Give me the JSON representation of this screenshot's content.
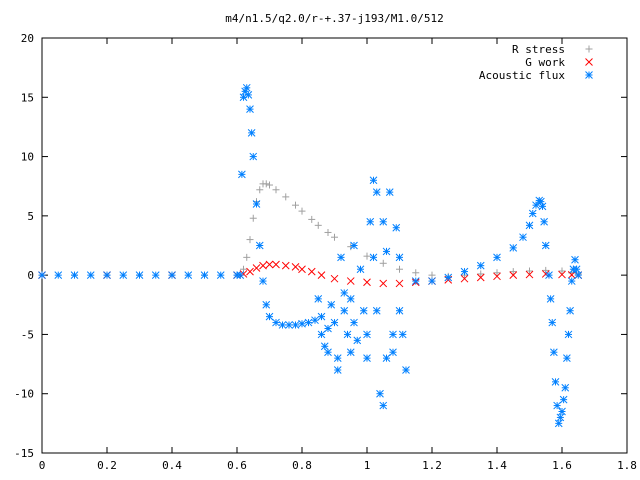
{
  "chart_data": {
    "type": "scatter",
    "title": "m4/n1.5/q2.0/r-+.37-j193/M1.0/512",
    "xlabel": "",
    "ylabel": "",
    "xlim": [
      0,
      1.8
    ],
    "ylim": [
      -15,
      20
    ],
    "xticks": [
      "0",
      "0.2",
      "0.4",
      "0.6",
      "0.8",
      "1",
      "1.2",
      "1.4",
      "1.6",
      "1.8"
    ],
    "yticks": [
      "-15",
      "-10",
      "-5",
      "0",
      "5",
      "10",
      "15",
      "20"
    ],
    "grid": false,
    "legend_position": "top-right",
    "series": [
      {
        "name": "R stress",
        "color": "#a0a0a0",
        "marker": "plus",
        "x": [
          0.0,
          0.1,
          0.2,
          0.3,
          0.4,
          0.5,
          0.6,
          0.62,
          0.63,
          0.64,
          0.65,
          0.66,
          0.67,
          0.68,
          0.69,
          0.7,
          0.72,
          0.75,
          0.78,
          0.8,
          0.83,
          0.85,
          0.88,
          0.9,
          0.95,
          1.0,
          1.05,
          1.1,
          1.15,
          1.2,
          1.25,
          1.3,
          1.35,
          1.4,
          1.45,
          1.5,
          1.55,
          1.6,
          1.63,
          1.65
        ],
        "y": [
          0,
          0,
          0,
          0,
          0,
          0,
          0,
          0.5,
          1.5,
          3.0,
          4.8,
          6.2,
          7.2,
          7.7,
          7.7,
          7.6,
          7.2,
          6.6,
          5.9,
          5.4,
          4.7,
          4.2,
          3.6,
          3.2,
          2.4,
          1.6,
          1.0,
          0.5,
          0.2,
          0.0,
          -0.1,
          0.0,
          0.1,
          0.2,
          0.3,
          0.35,
          0.4,
          0.35,
          0.2,
          0.1
        ]
      },
      {
        "name": "G work",
        "color": "#ff0000",
        "marker": "cross",
        "x": [
          0.0,
          0.2,
          0.4,
          0.6,
          0.62,
          0.64,
          0.66,
          0.68,
          0.7,
          0.72,
          0.75,
          0.78,
          0.8,
          0.83,
          0.86,
          0.9,
          0.95,
          1.0,
          1.05,
          1.1,
          1.15,
          1.2,
          1.25,
          1.3,
          1.35,
          1.4,
          1.45,
          1.5,
          1.55,
          1.6,
          1.63,
          1.65
        ],
        "y": [
          0,
          0,
          0,
          0,
          0.1,
          0.3,
          0.6,
          0.8,
          0.9,
          0.9,
          0.8,
          0.7,
          0.5,
          0.3,
          0.0,
          -0.3,
          -0.5,
          -0.6,
          -0.7,
          -0.7,
          -0.6,
          -0.5,
          -0.4,
          -0.3,
          -0.2,
          -0.1,
          0.0,
          0.05,
          0.1,
          0.05,
          0.02,
          0.0
        ]
      },
      {
        "name": "Acoustic flux",
        "color": "#0080ff",
        "marker": "star",
        "x": [
          0.0,
          0.05,
          0.1,
          0.15,
          0.2,
          0.25,
          0.3,
          0.35,
          0.4,
          0.45,
          0.5,
          0.55,
          0.6,
          0.61,
          0.615,
          0.62,
          0.625,
          0.63,
          0.635,
          0.64,
          0.645,
          0.65,
          0.66,
          0.67,
          0.68,
          0.69,
          0.7,
          0.72,
          0.74,
          0.76,
          0.78,
          0.8,
          0.82,
          0.84,
          0.85,
          0.86,
          0.86,
          0.87,
          0.88,
          0.88,
          0.89,
          0.9,
          0.91,
          0.91,
          0.92,
          0.93,
          0.93,
          0.94,
          0.95,
          0.95,
          0.96,
          0.96,
          0.97,
          0.98,
          0.99,
          1.0,
          1.0,
          1.01,
          1.02,
          1.02,
          1.03,
          1.03,
          1.04,
          1.05,
          1.05,
          1.06,
          1.06,
          1.07,
          1.08,
          1.08,
          1.09,
          1.1,
          1.1,
          1.11,
          1.12,
          1.15,
          1.2,
          1.25,
          1.3,
          1.35,
          1.4,
          1.45,
          1.48,
          1.5,
          1.51,
          1.52,
          1.53,
          1.535,
          1.54,
          1.545,
          1.55,
          1.56,
          1.565,
          1.57,
          1.575,
          1.58,
          1.585,
          1.59,
          1.595,
          1.6,
          1.605,
          1.61,
          1.615,
          1.62,
          1.625,
          1.63,
          1.635,
          1.64,
          1.645,
          1.65
        ],
        "y": [
          0,
          0,
          0,
          0,
          0,
          0,
          0,
          0,
          0,
          0,
          0,
          0,
          0,
          0,
          8.5,
          15.0,
          15.5,
          15.8,
          15.2,
          14.0,
          12.0,
          10.0,
          6.0,
          2.5,
          -0.5,
          -2.5,
          -3.5,
          -4.0,
          -4.2,
          -4.2,
          -4.2,
          -4.1,
          -4.0,
          -3.8,
          -2.0,
          -3.5,
          -5.0,
          -6.0,
          -4.5,
          -6.5,
          -2.5,
          -4.0,
          -7.0,
          -8.0,
          1.5,
          -1.5,
          -3.0,
          -5.0,
          -6.5,
          -2.0,
          2.5,
          -4.0,
          -5.5,
          0.5,
          -3.0,
          -5.0,
          -7.0,
          4.5,
          8.0,
          1.5,
          7.0,
          -3.0,
          -10.0,
          -11.0,
          4.5,
          -7.0,
          2.0,
          7.0,
          -6.5,
          -5.0,
          4.0,
          1.5,
          -3.0,
          -5.0,
          -8.0,
          -0.5,
          -0.5,
          -0.2,
          0.3,
          0.8,
          1.5,
          2.3,
          3.2,
          4.2,
          5.2,
          5.9,
          6.3,
          6.2,
          5.8,
          4.5,
          2.5,
          0.0,
          -2.0,
          -4.0,
          -6.5,
          -9.0,
          -11.0,
          -12.5,
          -12.0,
          -11.5,
          -10.5,
          -9.5,
          -7.0,
          -5.0,
          -3.0,
          -0.5,
          0.5,
          1.3,
          0.5,
          0.0
        ]
      }
    ]
  }
}
